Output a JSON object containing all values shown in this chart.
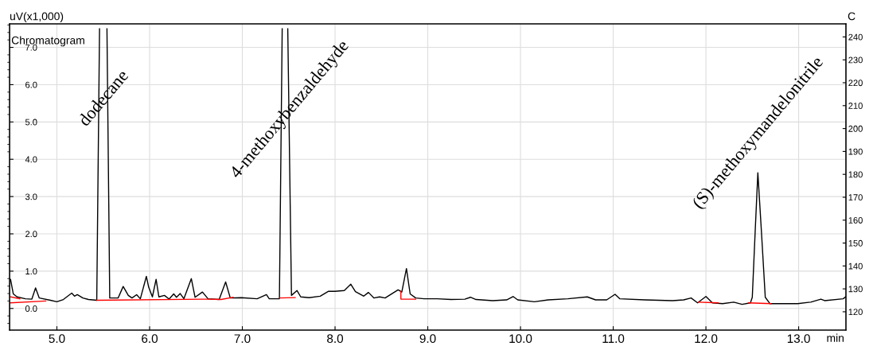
{
  "chart_data": {
    "type": "line",
    "ylabel": "uV(x1,000)",
    "xlabel": "min",
    "y2label": "C",
    "annotations": [
      "Chromatogram",
      "dodecane",
      "4-methoxybenzaldehyde",
      "(S)-methoxymandelonitrile"
    ],
    "xlim": [
      4.49,
      13.51
    ],
    "ylim": [
      -0.58,
      7.63
    ],
    "y2lim": [
      112,
      245.7
    ],
    "xticks": [
      {
        "value": 5,
        "label": "5.0"
      },
      {
        "value": 6,
        "label": "6.0"
      },
      {
        "value": 7,
        "label": "7.0"
      },
      {
        "value": 8,
        "label": "8.0"
      },
      {
        "value": 9,
        "label": "9.0"
      },
      {
        "value": 10,
        "label": "10.0"
      },
      {
        "value": 11,
        "label": "11.0"
      },
      {
        "value": 12,
        "label": "12.0"
      },
      {
        "value": 13,
        "label": "13.0"
      }
    ],
    "yticks": [
      {
        "value": 0,
        "label": "0.0"
      },
      {
        "value": 1,
        "label": "1.0"
      },
      {
        "value": 2,
        "label": "2.0"
      },
      {
        "value": 3,
        "label": "3.0"
      },
      {
        "value": 4,
        "label": "4.0"
      },
      {
        "value": 5,
        "label": "5.0"
      },
      {
        "value": 6,
        "label": "6.0"
      },
      {
        "value": 7,
        "label": "7.0"
      }
    ],
    "y2ticks": [
      120,
      130,
      140,
      150,
      160,
      170,
      180,
      190,
      200,
      210,
      220,
      230,
      240
    ],
    "grid": true,
    "legend": false,
    "line_style": "solid",
    "series": [
      {
        "color": "#000000",
        "x": [
          4.5,
          4.53,
          4.57,
          4.66,
          4.73,
          4.77,
          4.81,
          4.93,
          5.0,
          5.07,
          5.16,
          5.19,
          5.22,
          5.28,
          5.34,
          5.43,
          5.46,
          5.5,
          5.54,
          5.57,
          5.66,
          5.715,
          5.77,
          5.81,
          5.86,
          5.9,
          5.965,
          5.99,
          6.03,
          6.07,
          6.1,
          6.16,
          6.21,
          6.26,
          6.29,
          6.33,
          6.37,
          6.45,
          6.49,
          6.57,
          6.63,
          6.75,
          6.82,
          6.87,
          6.99,
          7.16,
          7.26,
          7.29,
          7.4,
          7.43,
          7.46,
          7.49,
          7.53,
          7.59,
          7.63,
          7.72,
          7.84,
          7.93,
          8.0,
          8.1,
          8.17,
          8.22,
          8.31,
          8.36,
          8.42,
          8.48,
          8.54,
          8.68,
          8.72,
          8.77,
          8.81,
          8.87,
          8.96,
          9.1,
          9.25,
          9.4,
          9.46,
          9.52,
          9.7,
          9.85,
          9.92,
          9.97,
          10.15,
          10.3,
          10.51,
          10.72,
          10.81,
          10.93,
          11.02,
          11.07,
          11.34,
          11.64,
          11.76,
          11.84,
          11.91,
          12.0,
          12.07,
          12.18,
          12.3,
          12.39,
          12.48,
          12.5,
          12.53,
          12.56,
          12.6,
          12.64,
          12.69,
          12.99,
          13.13,
          13.24,
          13.28,
          13.48,
          13.51
        ],
        "values": [
          0.78,
          0.39,
          0.31,
          0.26,
          0.25,
          0.55,
          0.28,
          0.22,
          0.18,
          0.24,
          0.41,
          0.33,
          0.37,
          0.28,
          0.24,
          0.22,
          7.5,
          null,
          7.5,
          0.28,
          0.28,
          0.59,
          0.35,
          0.28,
          0.37,
          0.26,
          0.86,
          0.57,
          0.31,
          0.78,
          0.31,
          0.35,
          0.25,
          0.39,
          0.3,
          0.4,
          0.26,
          0.8,
          0.3,
          0.44,
          0.26,
          0.24,
          0.71,
          0.28,
          0.29,
          0.26,
          0.37,
          0.26,
          0.26,
          7.5,
          null,
          7.5,
          0.35,
          0.48,
          0.31,
          0.29,
          0.33,
          0.46,
          0.46,
          0.48,
          0.65,
          0.45,
          0.33,
          0.43,
          0.28,
          0.31,
          0.28,
          0.5,
          0.44,
          1.07,
          0.39,
          0.28,
          0.26,
          0.26,
          0.24,
          0.25,
          0.3,
          0.24,
          0.21,
          0.23,
          0.32,
          0.23,
          0.18,
          0.23,
          0.26,
          0.31,
          0.23,
          0.23,
          0.38,
          0.26,
          0.23,
          0.21,
          0.23,
          0.28,
          0.15,
          0.32,
          0.15,
          0.13,
          0.17,
          0.11,
          0.15,
          0.3,
          2.0,
          3.64,
          2.0,
          0.3,
          0.13,
          0.13,
          0.17,
          0.25,
          0.21,
          0.26,
          0.32
        ]
      },
      {
        "color": "#ff0000",
        "x": [
          4.5,
          4.6
        ],
        "values": [
          0.31,
          0.26
        ]
      },
      {
        "color": "#ff0000",
        "x": [
          4.5,
          4.88
        ],
        "values": [
          0.15,
          0.2
        ]
      },
      {
        "color": "#ff0000",
        "x": [
          5.43,
          6.62,
          6.77,
          6.9
        ],
        "values": [
          0.22,
          0.25,
          0.24,
          0.3
        ]
      },
      {
        "color": "#ff0000",
        "x": [
          7.4,
          7.57
        ],
        "values": [
          0.28,
          0.29
        ]
      },
      {
        "color": "#ff0000",
        "x": [
          8.71,
          8.71,
          8.87
        ],
        "values": [
          0.46,
          0.25,
          0.25
        ]
      },
      {
        "color": "#ff0000",
        "x": [
          11.92,
          12.13
        ],
        "values": [
          0.17,
          0.15
        ]
      },
      {
        "color": "#ff0000",
        "x": [
          12.46,
          12.7
        ],
        "values": [
          0.15,
          0.13
        ]
      }
    ]
  }
}
